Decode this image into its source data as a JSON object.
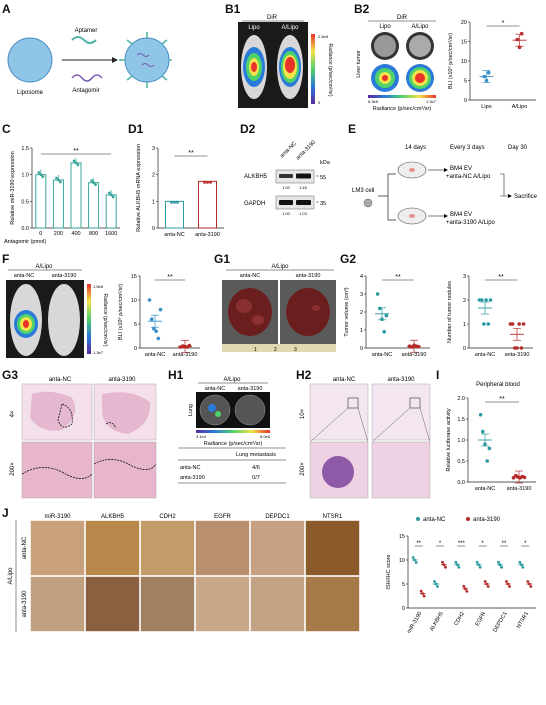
{
  "A": {
    "label": "A",
    "aptamer": "Aptamer",
    "antagomir": "Antagomir",
    "liposome": "Liposome"
  },
  "B1": {
    "label": "B1",
    "dir": "DiR",
    "lipo": "Lipo",
    "alipo": "A/Lipo",
    "radiance": "Radiance (p/sec/cm²/sr)",
    "max": "2.5e8",
    "min": "0"
  },
  "B2": {
    "label": "B2",
    "dir": "DiR",
    "lipo": "Lipo",
    "alipo": "A/Lipo",
    "liver_tumor": "Liver tumor",
    "radiance": "Radiance (p/sec/cm²/sr)",
    "min": "5.3e5",
    "max": "1.3e7",
    "chart": {
      "ylabel": "BLI (x10⁶ p/sec/cm²/sr)",
      "yticks": [
        "0",
        "5",
        "10",
        "15",
        "20"
      ],
      "categories": [
        "Lipo",
        "A/Lipo"
      ],
      "sig": "*"
    }
  },
  "C": {
    "label": "C",
    "ylabel": "Relative miR-3190 expression",
    "xlabel": "Antagomir (pmol)",
    "xticks": [
      "0",
      "200",
      "400",
      "800",
      "1600"
    ],
    "yticks": [
      "0.0",
      "0.5",
      "1.0",
      "1.5"
    ],
    "sig": "**"
  },
  "D1": {
    "label": "D1",
    "ylabel": "Relative ALKBH5 mRNA expression",
    "yticks": [
      "0",
      "1",
      "2",
      "3"
    ],
    "categories": [
      "anta-NC",
      "anta-3190"
    ],
    "sig": "**"
  },
  "D2": {
    "label": "D2",
    "cols": [
      "anta-NC",
      "anta-3190"
    ],
    "kda": "kDa",
    "rows": [
      {
        "name": "ALKBH5",
        "size": "55",
        "q": [
          "1.00",
          "1.45"
        ]
      },
      {
        "name": "GAPDH",
        "size": "35",
        "q": [
          "1.00",
          "1.03"
        ]
      }
    ]
  },
  "E": {
    "label": "E",
    "t1": "14 days",
    "t2": "Every 3 days",
    "t3": "Day 30",
    "cell": "LM3 cell",
    "g1": "BM4 EV",
    "g1b": "+anta-NC A/Lipo",
    "g2": "BM4 EV",
    "g2b": "+anta-3190 A/Lipo",
    "end": "Sacrifice"
  },
  "F": {
    "label": "F",
    "title": "A/Lipo",
    "c1": "anta-NC",
    "c2": "anta-3190",
    "radiance": "Radiance (p/sec/cm²/sr)",
    "max": "1.5e8",
    "min": "1.3e7",
    "chart": {
      "ylabel": "BLI (x10⁸ p/sec/cm²/sr)",
      "yticks": [
        "0",
        "5",
        "10",
        "15"
      ],
      "categories": [
        "anta-NC",
        "anta-3190"
      ],
      "sig": "**"
    }
  },
  "G1": {
    "label": "G1",
    "title": "A/Lipo",
    "c1": "anta-NC",
    "c2": "anta-3190",
    "ruler": [
      "1",
      "2",
      "3"
    ]
  },
  "G2": {
    "label": "G2",
    "chart1": {
      "ylabel": "Tumor volume (cm³)",
      "yticks": [
        "0",
        "1",
        "2",
        "3",
        "4"
      ],
      "categories": [
        "anta-NC",
        "anta-3190"
      ],
      "sig": "**"
    },
    "chart2": {
      "ylabel": "Number of tumor nodules",
      "yticks": [
        "0",
        "1",
        "2",
        "3"
      ],
      "categories": [
        "anta-NC",
        "anta-3190"
      ],
      "sig": "**"
    }
  },
  "G3": {
    "label": "G3",
    "c1": "anta-NC",
    "c2": "anta-3190",
    "r1": "4×",
    "r2": "200×"
  },
  "H1": {
    "label": "H1",
    "title": "A/Lipo",
    "c1": "anta-NC",
    "c2": "anta-3190",
    "lung": "Lung",
    "min": "3.1e4",
    "max": "6.0e6",
    "radiance": "Radiance (p/sec/cm²/sr)",
    "table": {
      "header": "Lung metastasis",
      "rows": [
        [
          "anta-NC",
          "4/6"
        ],
        [
          "anta-3190",
          "0/7"
        ]
      ]
    }
  },
  "H2": {
    "label": "H2",
    "c1": "anta-NC",
    "c2": "anta-3190",
    "r1": "10×",
    "r2": "200×"
  },
  "I": {
    "label": "I",
    "title": "Peripheral blood",
    "ylabel": "Relative luciferase activity",
    "yticks": [
      "0.0",
      "0.5",
      "1.0",
      "1.5",
      "2.0"
    ],
    "categories": [
      "anta-NC",
      "anta-3190"
    ],
    "sig": "**"
  },
  "J": {
    "label": "J",
    "cols": [
      "miR-3190",
      "ALKBH5",
      "CDH2",
      "EGFR",
      "DEPDC1",
      "NTSR1"
    ],
    "rows": [
      "anta-NC",
      "anta-3190"
    ],
    "side": "A/Lipo",
    "chart": {
      "ylabel": "ISH/IHC score",
      "yticks": [
        "0",
        "5",
        "10",
        "15"
      ],
      "legend": [
        "anta-NC",
        "anta-3190"
      ],
      "sig": [
        "**",
        "*",
        "***",
        "*",
        "**",
        "*"
      ]
    }
  },
  "colors": {
    "blue": "#3a8fc9",
    "red": "#b72a2a",
    "teal": "#2a9aa0",
    "green": "#3aa69a"
  },
  "chart_data": [
    {
      "type": "scatter",
      "panel": "B2",
      "categories": [
        "Lipo",
        "A/Lipo"
      ],
      "series": [
        {
          "values": [
            [
              6,
              5.5,
              7
            ],
            [
              15.5,
              13.5,
              17
            ]
          ]
        }
      ],
      "ylabel": "BLI (x10⁶ p/sec/cm²/sr)",
      "ylim": [
        0,
        20
      ]
    },
    {
      "type": "bar",
      "panel": "C",
      "categories": [
        "0",
        "200",
        "400",
        "800",
        "1600"
      ],
      "values": [
        1.0,
        0.9,
        1.22,
        0.85,
        0.62
      ],
      "ylabel": "Relative miR-3190 expression",
      "ylim": [
        0,
        1.5
      ]
    },
    {
      "type": "bar",
      "panel": "D1",
      "categories": [
        "anta-NC",
        "anta-3190"
      ],
      "values": [
        1.0,
        1.75
      ],
      "ylabel": "Relative ALKBH5 mRNA expression",
      "ylim": [
        0,
        3
      ]
    },
    {
      "type": "scatter",
      "panel": "F",
      "categories": [
        "anta-NC",
        "anta-3190"
      ],
      "values": [
        5.7,
        0.3
      ],
      "ylabel": "BLI (x10⁸ p/sec/cm²/sr)",
      "ylim": [
        0,
        15
      ]
    },
    {
      "type": "scatter",
      "panel": "G2-1",
      "categories": [
        "anta-NC",
        "anta-3190"
      ],
      "values": [
        1.9,
        0.1
      ],
      "ylabel": "Tumor volume (cm³)",
      "ylim": [
        0,
        4
      ]
    },
    {
      "type": "scatter",
      "panel": "G2-2",
      "categories": [
        "anta-NC",
        "anta-3190"
      ],
      "values": [
        1.7,
        0.6
      ],
      "ylabel": "Number of tumor nodules",
      "ylim": [
        0,
        3
      ]
    },
    {
      "type": "scatter",
      "panel": "I",
      "categories": [
        "anta-NC",
        "anta-3190"
      ],
      "values": [
        1.0,
        0.12
      ],
      "ylabel": "Relative luciferase activity",
      "ylim": [
        0,
        2.0
      ]
    },
    {
      "type": "scatter",
      "panel": "J",
      "categories": [
        "miR-3190",
        "ALKBH5",
        "CDH2",
        "EGFR",
        "DEPDC1",
        "NTSR1"
      ],
      "series": [
        {
          "name": "anta-NC",
          "values": [
            10,
            5,
            9,
            9,
            9,
            9
          ]
        },
        {
          "name": "anta-3190",
          "values": [
            3,
            9,
            4,
            5,
            5,
            5
          ]
        }
      ],
      "ylabel": "ISH/IHC score",
      "ylim": [
        0,
        15
      ]
    }
  ]
}
